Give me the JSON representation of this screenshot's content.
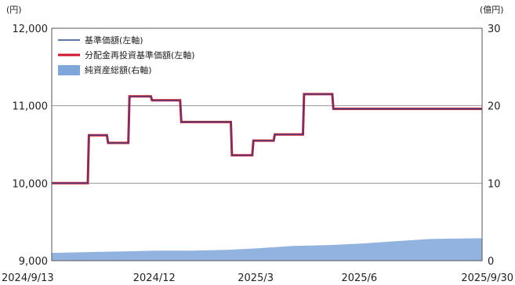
{
  "chart_data": {
    "type": "line",
    "title": "",
    "left_axis": {
      "unit": "(円)",
      "ylim": [
        9000,
        12000
      ],
      "ticks": [
        9000,
        10000,
        11000,
        12000
      ],
      "tick_labels": [
        "9,000",
        "10,000",
        "11,000",
        "12,000"
      ]
    },
    "right_axis": {
      "unit": "(億円)",
      "ylim": [
        0,
        30
      ],
      "ticks": [
        0,
        10,
        20,
        30
      ],
      "tick_labels": [
        "0",
        "10",
        "20",
        "30"
      ]
    },
    "x_axis": {
      "range": [
        "2024-09-13",
        "2025-09-30"
      ],
      "ticks": [
        "2024-09-13",
        "2024-12-13",
        "2025-03-13",
        "2025-06-13",
        "2025-09-30"
      ],
      "tick_labels": [
        "2024/9/13",
        "2024/12",
        "2025/3",
        "2025/6",
        "2025/9/30"
      ]
    },
    "grid": true,
    "legend_position": "top-left",
    "series": [
      {
        "name": "基準価額(左軸)",
        "axis": "left",
        "kind": "line",
        "color": "#2b4c8c",
        "points": [
          [
            "2024-09-13",
            10000
          ],
          [
            "2024-10-15",
            10000
          ],
          [
            "2024-10-16",
            10620
          ],
          [
            "2024-11-01",
            10620
          ],
          [
            "2024-11-02",
            10520
          ],
          [
            "2024-11-20",
            10520
          ],
          [
            "2024-11-21",
            11120
          ],
          [
            "2024-12-10",
            11120
          ],
          [
            "2024-12-11",
            11070
          ],
          [
            "2025-01-05",
            11070
          ],
          [
            "2025-01-06",
            10790
          ],
          [
            "2025-02-19",
            10790
          ],
          [
            "2025-02-20",
            10360
          ],
          [
            "2025-03-10",
            10360
          ],
          [
            "2025-03-11",
            10550
          ],
          [
            "2025-03-29",
            10550
          ],
          [
            "2025-03-30",
            10630
          ],
          [
            "2025-04-24",
            10630
          ],
          [
            "2025-04-25",
            11150
          ],
          [
            "2025-05-20",
            11150
          ],
          [
            "2025-05-21",
            10960
          ],
          [
            "2025-09-30",
            10960
          ]
        ]
      },
      {
        "name": "分配金再投資基準価額(左軸)",
        "axis": "left",
        "kind": "line",
        "color": "#d0162e",
        "points": [
          [
            "2024-09-13",
            10000
          ],
          [
            "2024-10-15",
            10000
          ],
          [
            "2024-10-16",
            10620
          ],
          [
            "2024-11-01",
            10620
          ],
          [
            "2024-11-02",
            10520
          ],
          [
            "2024-11-20",
            10520
          ],
          [
            "2024-11-21",
            11120
          ],
          [
            "2024-12-10",
            11120
          ],
          [
            "2024-12-11",
            11070
          ],
          [
            "2025-01-05",
            11070
          ],
          [
            "2025-01-06",
            10790
          ],
          [
            "2025-02-19",
            10790
          ],
          [
            "2025-02-20",
            10360
          ],
          [
            "2025-03-10",
            10360
          ],
          [
            "2025-03-11",
            10550
          ],
          [
            "2025-03-29",
            10550
          ],
          [
            "2025-03-30",
            10630
          ],
          [
            "2025-04-24",
            10630
          ],
          [
            "2025-04-25",
            11150
          ],
          [
            "2025-05-20",
            11150
          ],
          [
            "2025-05-21",
            10960
          ],
          [
            "2025-09-30",
            10960
          ]
        ]
      },
      {
        "name": "純資産総額(右軸)",
        "axis": "right",
        "kind": "area",
        "color": "#7fa6d9",
        "points": [
          [
            "2024-09-13",
            1.0
          ],
          [
            "2024-10-15",
            1.1
          ],
          [
            "2024-11-15",
            1.2
          ],
          [
            "2024-12-15",
            1.3
          ],
          [
            "2025-01-15",
            1.3
          ],
          [
            "2025-02-15",
            1.4
          ],
          [
            "2025-03-15",
            1.6
          ],
          [
            "2025-04-15",
            1.9
          ],
          [
            "2025-05-15",
            2.0
          ],
          [
            "2025-06-15",
            2.2
          ],
          [
            "2025-07-15",
            2.5
          ],
          [
            "2025-08-15",
            2.8
          ],
          [
            "2025-09-30",
            2.9
          ]
        ]
      }
    ]
  }
}
